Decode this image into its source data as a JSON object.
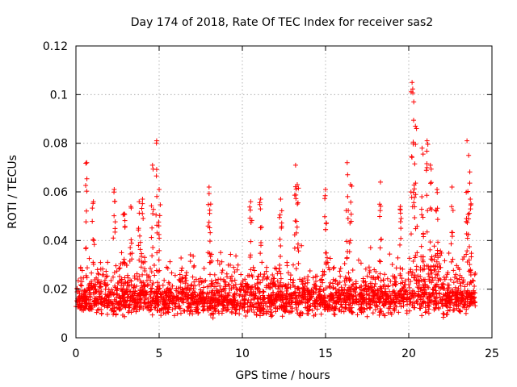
{
  "chart_data": {
    "type": "scatter",
    "title": "Day 174 of 2018, Rate Of TEC Index for receiver sas2",
    "xlabel": "GPS time / hours",
    "ylabel": "ROTI / TECUs",
    "xlim": [
      0,
      25
    ],
    "ylim": [
      0,
      0.12
    ],
    "xticks": [
      0,
      5,
      10,
      15,
      20,
      25
    ],
    "xtick_labels": [
      "0",
      "5",
      "10",
      "15",
      "20",
      "25"
    ],
    "yticks": [
      0,
      0.02,
      0.04,
      0.06,
      0.08,
      0.1,
      0.12
    ],
    "ytick_labels": [
      "0",
      "0.02",
      "0.04",
      "0.06",
      "0.08",
      "0.1",
      "0.12"
    ],
    "grid": true,
    "marker": "+",
    "series": [
      {
        "name": "ROTI",
        "color": "#ff0000",
        "notes": "Dense band of points 0.005–0.03 TECU/s across 0–24 h; selected peaks listed below",
        "peaks": [
          {
            "x": 0.65,
            "y": 0.072
          },
          {
            "x": 1.05,
            "y": 0.056
          },
          {
            "x": 2.3,
            "y": 0.061
          },
          {
            "x": 2.9,
            "y": 0.051
          },
          {
            "x": 3.3,
            "y": 0.054
          },
          {
            "x": 3.8,
            "y": 0.056
          },
          {
            "x": 4.0,
            "y": 0.057
          },
          {
            "x": 4.6,
            "y": 0.071
          },
          {
            "x": 4.85,
            "y": 0.081
          },
          {
            "x": 5.0,
            "y": 0.061
          },
          {
            "x": 8.0,
            "y": 0.062
          },
          {
            "x": 8.1,
            "y": 0.055
          },
          {
            "x": 10.5,
            "y": 0.056
          },
          {
            "x": 11.1,
            "y": 0.057
          },
          {
            "x": 12.3,
            "y": 0.057
          },
          {
            "x": 13.2,
            "y": 0.071
          },
          {
            "x": 13.3,
            "y": 0.063
          },
          {
            "x": 15.0,
            "y": 0.061
          },
          {
            "x": 16.3,
            "y": 0.072
          },
          {
            "x": 16.5,
            "y": 0.063
          },
          {
            "x": 18.3,
            "y": 0.064
          },
          {
            "x": 19.5,
            "y": 0.054
          },
          {
            "x": 20.2,
            "y": 0.105
          },
          {
            "x": 20.3,
            "y": 0.097
          },
          {
            "x": 20.4,
            "y": 0.087
          },
          {
            "x": 20.8,
            "y": 0.078
          },
          {
            "x": 21.1,
            "y": 0.081
          },
          {
            "x": 21.3,
            "y": 0.071
          },
          {
            "x": 21.7,
            "y": 0.061
          },
          {
            "x": 22.6,
            "y": 0.062
          },
          {
            "x": 23.5,
            "y": 0.081
          },
          {
            "x": 23.6,
            "y": 0.075
          },
          {
            "x": 23.7,
            "y": 0.057
          }
        ]
      }
    ]
  }
}
